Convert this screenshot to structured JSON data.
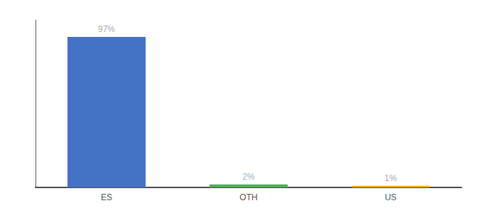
{
  "chart_data": {
    "type": "bar",
    "categories": [
      "ES",
      "OTH",
      "US"
    ],
    "values": [
      97,
      2,
      1
    ],
    "value_labels": [
      "97%",
      "2%",
      "1%"
    ],
    "colors": [
      "#4472c4",
      "#4caf50",
      "#ffa500"
    ],
    "ylim": [
      0,
      108
    ],
    "grid": false,
    "tick_labels": "x",
    "data_labels": true
  }
}
